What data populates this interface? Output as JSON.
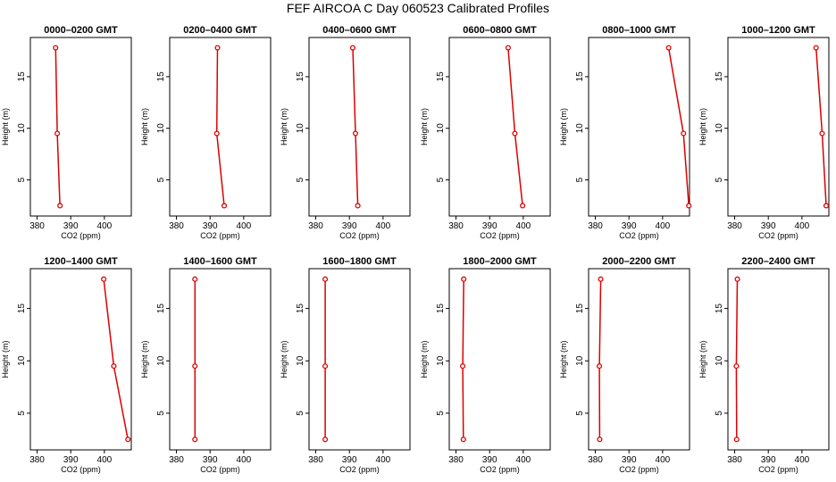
{
  "page_title": "FEF AIRCOA C  Day 060523  Calibrated Profiles",
  "colors": {
    "series": "#dd0000",
    "axes": "#000000"
  },
  "chart_data": [
    {
      "type": "line",
      "title": "0000–0200 GMT",
      "xlabel": "CO2 (ppm)",
      "ylabel": "Height (m)",
      "xlim": [
        378,
        408
      ],
      "ylim": [
        1.5,
        18.8
      ],
      "xticks": [
        380,
        390,
        400
      ],
      "yticks": [
        5,
        10,
        15
      ],
      "series": [
        {
          "x": [
            385.5,
            386.0,
            386.8
          ],
          "y": [
            17.8,
            9.5,
            2.5
          ]
        }
      ]
    },
    {
      "type": "line",
      "title": "0200–0400 GMT",
      "xlabel": "CO2 (ppm)",
      "ylabel": "Height (m)",
      "xlim": [
        378,
        408
      ],
      "ylim": [
        1.5,
        18.8
      ],
      "xticks": [
        380,
        390,
        400
      ],
      "yticks": [
        5,
        10,
        15
      ],
      "series": [
        {
          "x": [
            392.2,
            392.0,
            394.2
          ],
          "y": [
            17.8,
            9.5,
            2.5
          ]
        }
      ]
    },
    {
      "type": "line",
      "title": "0400–0600 GMT",
      "xlabel": "CO2 (ppm)",
      "ylabel": "Height (m)",
      "xlim": [
        378,
        408
      ],
      "ylim": [
        1.5,
        18.8
      ],
      "xticks": [
        380,
        390,
        400
      ],
      "yticks": [
        5,
        10,
        15
      ],
      "series": [
        {
          "x": [
            391.0,
            391.8,
            392.5
          ],
          "y": [
            17.8,
            9.5,
            2.5
          ]
        }
      ]
    },
    {
      "type": "line",
      "title": "0600–0800 GMT",
      "xlabel": "CO2 (ppm)",
      "ylabel": "Height (m)",
      "xlim": [
        378,
        408
      ],
      "ylim": [
        1.5,
        18.8
      ],
      "xticks": [
        380,
        390,
        400
      ],
      "yticks": [
        5,
        10,
        15
      ],
      "series": [
        {
          "x": [
            395.5,
            397.5,
            399.8
          ],
          "y": [
            17.8,
            9.5,
            2.5
          ]
        }
      ]
    },
    {
      "type": "line",
      "title": "0800–1000 GMT",
      "xlabel": "CO2 (ppm)",
      "ylabel": "Height (m)",
      "xlim": [
        378,
        408
      ],
      "ylim": [
        1.5,
        18.8
      ],
      "xticks": [
        380,
        390,
        400
      ],
      "yticks": [
        5,
        10,
        15
      ],
      "series": [
        {
          "x": [
            401.8,
            406.2,
            407.8
          ],
          "y": [
            17.8,
            9.5,
            2.5
          ]
        }
      ]
    },
    {
      "type": "line",
      "title": "1000–1200 GMT",
      "xlabel": "CO2 (ppm)",
      "ylabel": "Height (m)",
      "xlim": [
        378,
        408
      ],
      "ylim": [
        1.5,
        18.8
      ],
      "xticks": [
        380,
        390,
        400
      ],
      "yticks": [
        5,
        10,
        15
      ],
      "series": [
        {
          "x": [
            404.2,
            406.0,
            407.2
          ],
          "y": [
            17.8,
            9.5,
            2.5
          ]
        }
      ]
    },
    {
      "type": "line",
      "title": "1200–1400 GMT",
      "xlabel": "CO2 (ppm)",
      "ylabel": "Height (m)",
      "xlim": [
        378,
        408
      ],
      "ylim": [
        1.5,
        18.8
      ],
      "xticks": [
        380,
        390,
        400
      ],
      "yticks": [
        5,
        10,
        15
      ],
      "series": [
        {
          "x": [
            399.8,
            402.8,
            407.0
          ],
          "y": [
            17.8,
            9.5,
            2.5
          ]
        }
      ]
    },
    {
      "type": "line",
      "title": "1400–1600 GMT",
      "xlabel": "CO2 (ppm)",
      "ylabel": "Height (m)",
      "xlim": [
        378,
        408
      ],
      "ylim": [
        1.5,
        18.8
      ],
      "xticks": [
        380,
        390,
        400
      ],
      "yticks": [
        5,
        10,
        15
      ],
      "series": [
        {
          "x": [
            385.5,
            385.5,
            385.5
          ],
          "y": [
            17.8,
            9.5,
            2.5
          ]
        }
      ]
    },
    {
      "type": "line",
      "title": "1600–1800 GMT",
      "xlabel": "CO2 (ppm)",
      "ylabel": "Height (m)",
      "xlim": [
        378,
        408
      ],
      "ylim": [
        1.5,
        18.8
      ],
      "xticks": [
        380,
        390,
        400
      ],
      "yticks": [
        5,
        10,
        15
      ],
      "series": [
        {
          "x": [
            382.8,
            382.8,
            382.8
          ],
          "y": [
            17.8,
            9.5,
            2.5
          ]
        }
      ]
    },
    {
      "type": "line",
      "title": "1800–2000 GMT",
      "xlabel": "CO2 (ppm)",
      "ylabel": "Height (m)",
      "xlim": [
        378,
        408
      ],
      "ylim": [
        1.5,
        18.8
      ],
      "xticks": [
        380,
        390,
        400
      ],
      "yticks": [
        5,
        10,
        15
      ],
      "series": [
        {
          "x": [
            382.3,
            382.0,
            382.2
          ],
          "y": [
            17.8,
            9.5,
            2.5
          ]
        }
      ]
    },
    {
      "type": "line",
      "title": "2000–2200 GMT",
      "xlabel": "CO2 (ppm)",
      "ylabel": "Height (m)",
      "xlim": [
        378,
        408
      ],
      "ylim": [
        1.5,
        18.8
      ],
      "xticks": [
        380,
        390,
        400
      ],
      "yticks": [
        5,
        10,
        15
      ],
      "series": [
        {
          "x": [
            381.6,
            381.2,
            381.3
          ],
          "y": [
            17.8,
            9.5,
            2.5
          ]
        }
      ]
    },
    {
      "type": "line",
      "title": "2200–2400 GMT",
      "xlabel": "CO2 (ppm)",
      "ylabel": "Height (m)",
      "xlim": [
        378,
        408
      ],
      "ylim": [
        1.5,
        18.8
      ],
      "xticks": [
        380,
        390,
        400
      ],
      "yticks": [
        5,
        10,
        15
      ],
      "series": [
        {
          "x": [
            380.8,
            380.5,
            380.6
          ],
          "y": [
            17.8,
            9.5,
            2.5
          ]
        }
      ]
    }
  ]
}
